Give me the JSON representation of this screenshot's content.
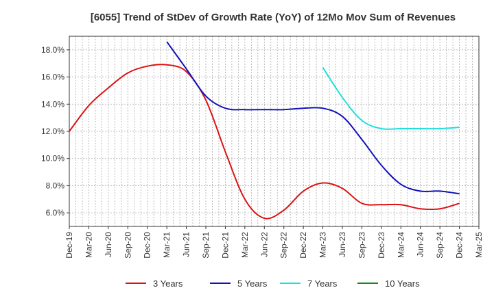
{
  "chart_data": {
    "type": "line",
    "title": "[6055]  Trend of StDev of Growth Rate (YoY) of 12Mo Mov Sum of Revenues",
    "xlabel": "",
    "ylabel": "",
    "ylim": [
      5.0,
      19.0
    ],
    "yticks": [
      6.0,
      8.0,
      10.0,
      12.0,
      14.0,
      16.0,
      18.0
    ],
    "ytick_labels": [
      "6.0%",
      "8.0%",
      "10.0%",
      "12.0%",
      "14.0%",
      "16.0%",
      "18.0%"
    ],
    "xtick_labels": [
      "Dec-19",
      "Mar-20",
      "Jun-20",
      "Sep-20",
      "Dec-20",
      "Mar-21",
      "Jun-21",
      "Sep-21",
      "Dec-21",
      "Mar-22",
      "Jun-22",
      "Sep-22",
      "Dec-22",
      "Mar-23",
      "Jun-23",
      "Sep-23",
      "Dec-23",
      "Mar-24",
      "Jun-24",
      "Sep-24",
      "Dec-24",
      "Mar-25"
    ],
    "grid": true,
    "legend_position": "bottom",
    "series": [
      {
        "name": "3 Years",
        "color": "#dd1111",
        "values": [
          12.0,
          13.9,
          15.2,
          16.3,
          16.8,
          16.9,
          16.4,
          14.3,
          10.5,
          7.0,
          5.6,
          6.2,
          7.6,
          8.2,
          7.8,
          6.7,
          6.6,
          6.6,
          6.3,
          6.3,
          6.7,
          null
        ]
      },
      {
        "name": "5 Years",
        "color": "#1111bb",
        "values": [
          null,
          null,
          null,
          null,
          null,
          18.6,
          16.6,
          14.6,
          13.7,
          13.6,
          13.6,
          13.6,
          13.7,
          13.7,
          13.1,
          11.4,
          9.5,
          8.1,
          7.6,
          7.6,
          7.4,
          null
        ]
      },
      {
        "name": "7 Years",
        "color": "#22dddd",
        "values": [
          null,
          null,
          null,
          null,
          null,
          null,
          null,
          null,
          null,
          null,
          null,
          null,
          null,
          16.7,
          14.5,
          12.8,
          12.2,
          12.2,
          12.2,
          12.2,
          12.3,
          null
        ]
      },
      {
        "name": "10 Years",
        "color": "#118811",
        "values": [
          null,
          null,
          null,
          null,
          null,
          null,
          null,
          null,
          null,
          null,
          null,
          null,
          null,
          null,
          null,
          null,
          null,
          null,
          null,
          null,
          null,
          null
        ]
      }
    ]
  }
}
